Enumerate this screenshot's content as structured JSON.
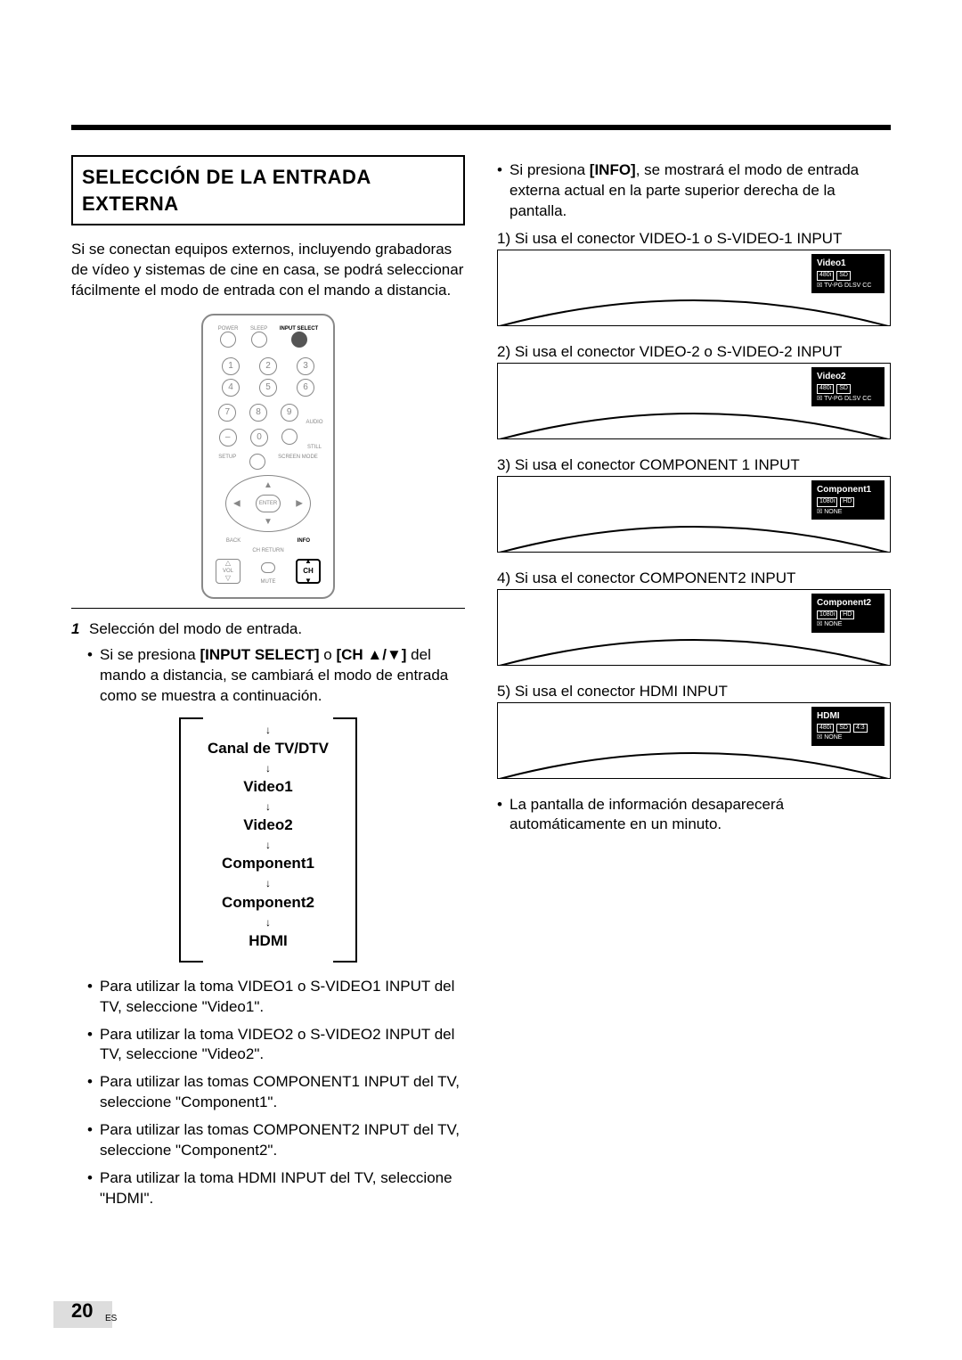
{
  "page": {
    "number": "20",
    "lang_code": "ES"
  },
  "left": {
    "title": "SELECCIÓN DE LA ENTRADA EXTERNA",
    "intro": "Si se conectan equipos externos, incluyendo grabadoras de vídeo y sistemas de cine en casa, se podrá seleccionar fácilmente el modo de entrada con el mando a distancia.",
    "remote": {
      "top_labels": {
        "power": "POWER",
        "sleep": "SLEEP",
        "input_select": "INPUT SELECT"
      },
      "numpad": [
        "1",
        "2",
        "3",
        "4",
        "5",
        "6",
        "7",
        "8",
        "9",
        "–",
        "0"
      ],
      "side_labels": {
        "audio": "AUDIO",
        "still": "STILL",
        "setup": "SETUP",
        "screen_mode": "SCREEN MODE",
        "back": "BACK",
        "info": "INFO"
      },
      "enter": "ENTER",
      "ch_return": "CH RETURN",
      "vol": "VOL",
      "mute": "MUTE",
      "ch": "CH"
    },
    "step_num": "1",
    "step_text": "Selección del modo de entrada.",
    "bullet1_pre": "Si se presiona ",
    "bullet1_b1": "[INPUT SELECT]",
    "bullet1_mid": " o ",
    "bullet1_b2": "[CH ▲/▼]",
    "bullet1_post": " del mando a distancia, se cambiará el modo de entrada como se muestra a continuación.",
    "cycle": [
      "Canal de TV/DTV",
      "Video1",
      "Video2",
      "Component1",
      "Component2",
      "HDMI"
    ],
    "bullets_tail": [
      "Para utilizar la toma VIDEO1 o S-VIDEO1 INPUT del TV, seleccione \"Video1\".",
      "Para utilizar la toma VIDEO2 o S-VIDEO2 INPUT del TV, seleccione \"Video2\".",
      "Para utilizar las tomas COMPONENT1 INPUT del TV, seleccione \"Component1\".",
      "Para utilizar las tomas COMPONENT2 INPUT del TV, seleccione \"Component2\".",
      "Para utilizar la toma HDMI INPUT del TV, seleccione \"HDMI\"."
    ]
  },
  "right": {
    "info_pre": "Si presiona ",
    "info_b": "[INFO]",
    "info_post": ", se mostrará el modo de entrada externa actual en la parte superior derecha de la pantalla.",
    "items": [
      {
        "label": "1) Si usa el conector VIDEO-1 o S-VIDEO-1 INPUT",
        "osd_title": "Video1",
        "badges": [
          "480i",
          "SD"
        ],
        "line": "☒ TV-PG DLSV  CC"
      },
      {
        "label": "2) Si usa el conector VIDEO-2 o S-VIDEO-2 INPUT",
        "osd_title": "Video2",
        "badges": [
          "480i",
          "SD"
        ],
        "line": "☒ TV-PG DLSV  CC"
      },
      {
        "label": "3) Si usa el conector COMPONENT 1 INPUT",
        "osd_title": "Component1",
        "badges": [
          "1080i",
          "HD"
        ],
        "line": "☒ NONE"
      },
      {
        "label": "4) Si usa el conector COMPONENT2 INPUT",
        "osd_title": "Component2",
        "badges": [
          "1080i",
          "HD"
        ],
        "line": "☒ NONE"
      },
      {
        "label": "5) Si usa el conector HDMI INPUT",
        "osd_title": "HDMI",
        "badges": [
          "480i",
          "SD",
          "4:3"
        ],
        "line": "☒ NONE"
      }
    ],
    "footer": "La pantalla de información desaparecerá automáticamente en un minuto."
  }
}
